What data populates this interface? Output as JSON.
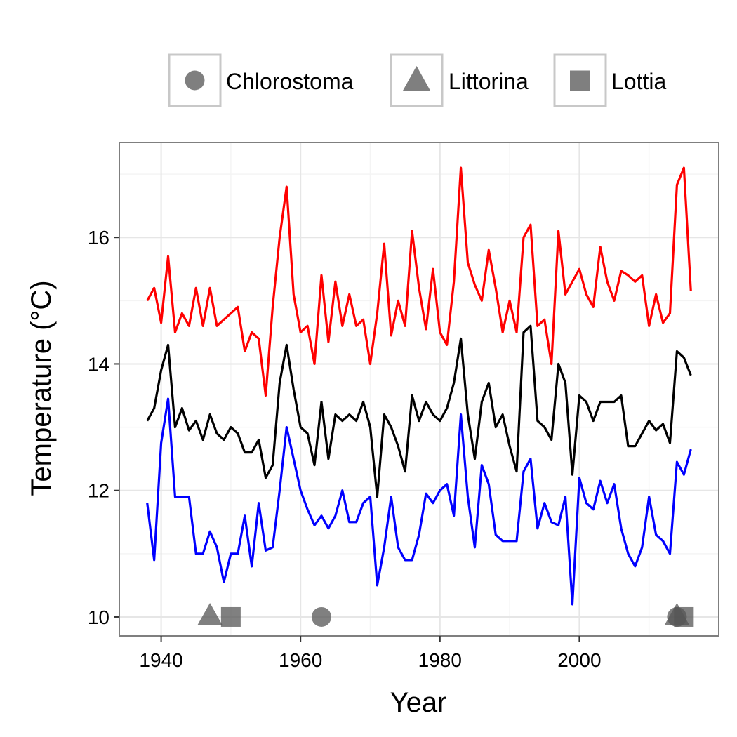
{
  "chart_data": {
    "type": "line",
    "title": "",
    "xlabel": "Year",
    "ylabel": "Temperature (°C)",
    "xlim": [
      1934,
      2020
    ],
    "ylim": [
      9.7,
      17.5
    ],
    "xticks": [
      1940,
      1960,
      1980,
      2000
    ],
    "yticks": [
      10,
      12,
      14,
      16
    ],
    "grid": true,
    "legend": {
      "position": "top",
      "entries": [
        {
          "label": "Chlorostoma",
          "shape": "circle"
        },
        {
          "label": "Littorina",
          "shape": "triangle"
        },
        {
          "label": "Lottia",
          "shape": "square"
        }
      ]
    },
    "colors": {
      "upper": "#ff0000",
      "middle": "#000000",
      "lower": "#0000ff",
      "marker": "#555555"
    },
    "x": [
      1938,
      1939,
      1940,
      1941,
      1942,
      1943,
      1944,
      1945,
      1946,
      1947,
      1948,
      1949,
      1950,
      1951,
      1952,
      1953,
      1954,
      1955,
      1956,
      1957,
      1958,
      1959,
      1960,
      1961,
      1962,
      1963,
      1964,
      1965,
      1966,
      1967,
      1968,
      1969,
      1970,
      1971,
      1972,
      1973,
      1974,
      1975,
      1976,
      1977,
      1978,
      1979,
      1980,
      1981,
      1982,
      1983,
      1984,
      1985,
      1986,
      1987,
      1988,
      1989,
      1990,
      1991,
      1992,
      1993,
      1994,
      1995,
      1996,
      1997,
      1998,
      1999,
      2000,
      2001,
      2002,
      2003,
      2004,
      2005,
      2006,
      2007,
      2008,
      2009,
      2010,
      2011,
      2012,
      2013,
      2014,
      2015,
      2016
    ],
    "series": [
      {
        "color": "#ff0000",
        "values": [
          15.0,
          15.2,
          14.65,
          15.7,
          14.5,
          14.8,
          14.6,
          15.2,
          14.6,
          15.2,
          14.6,
          14.7,
          14.8,
          14.9,
          14.2,
          14.5,
          14.4,
          13.5,
          14.9,
          16.0,
          16.8,
          15.1,
          14.5,
          14.6,
          14.0,
          15.4,
          14.35,
          15.3,
          14.6,
          15.1,
          14.6,
          14.7,
          14.0,
          14.8,
          15.9,
          14.45,
          15.0,
          14.6,
          16.1,
          15.2,
          14.55,
          15.5,
          14.5,
          14.3,
          15.3,
          17.1,
          15.6,
          15.25,
          15.0,
          15.8,
          15.2,
          14.5,
          15.0,
          14.5,
          16.0,
          16.2,
          14.6,
          14.7,
          14.0,
          16.1,
          15.1,
          15.3,
          15.5,
          15.1,
          14.9,
          15.85,
          15.3,
          15.0,
          15.47,
          15.4,
          15.3,
          15.4,
          14.6,
          15.1,
          14.65,
          14.8,
          16.83,
          17.1,
          15.15
        ]
      },
      {
        "color": "#000000",
        "values": [
          13.1,
          13.3,
          13.9,
          14.3,
          13.0,
          13.3,
          12.95,
          13.1,
          12.8,
          13.2,
          12.9,
          12.8,
          13.0,
          12.9,
          12.6,
          12.6,
          12.8,
          12.2,
          12.4,
          13.7,
          14.3,
          13.6,
          13.0,
          12.9,
          12.4,
          13.4,
          12.5,
          13.2,
          13.1,
          13.2,
          13.1,
          13.4,
          13.0,
          11.9,
          13.2,
          13.0,
          12.7,
          12.3,
          13.5,
          13.1,
          13.4,
          13.2,
          13.1,
          13.3,
          13.7,
          14.4,
          13.2,
          12.5,
          13.4,
          13.7,
          13.0,
          13.2,
          12.7,
          12.3,
          14.5,
          14.6,
          13.1,
          13.0,
          12.8,
          14.0,
          13.7,
          12.25,
          13.5,
          13.4,
          13.1,
          13.4,
          13.4,
          13.4,
          13.5,
          12.7,
          12.7,
          12.9,
          13.1,
          12.95,
          13.05,
          12.75,
          14.2,
          14.1,
          13.82
        ]
      },
      {
        "color": "#0000ff",
        "values": [
          11.8,
          10.9,
          12.75,
          13.45,
          11.9,
          11.9,
          11.9,
          11.0,
          11.0,
          11.35,
          11.1,
          10.55,
          11.0,
          11.0,
          11.6,
          10.8,
          11.8,
          11.05,
          11.1,
          12.0,
          13.0,
          12.5,
          12.0,
          11.7,
          11.45,
          11.6,
          11.4,
          11.6,
          12.0,
          11.5,
          11.5,
          11.8,
          11.9,
          10.5,
          11.1,
          11.9,
          11.1,
          10.9,
          10.9,
          11.3,
          11.95,
          11.8,
          12.0,
          12.1,
          11.6,
          13.2,
          11.9,
          11.1,
          12.4,
          12.1,
          11.3,
          11.2,
          11.2,
          11.2,
          12.3,
          12.5,
          11.4,
          11.8,
          11.5,
          11.45,
          11.9,
          10.2,
          12.2,
          11.8,
          11.7,
          12.15,
          11.8,
          12.1,
          11.4,
          11.0,
          10.8,
          11.1,
          11.9,
          11.3,
          11.2,
          11.0,
          12.45,
          12.25,
          12.65
        ]
      }
    ],
    "markers": [
      {
        "species": "Chlorostoma",
        "shape": "circle",
        "x": 1963,
        "y": 10
      },
      {
        "species": "Chlorostoma",
        "shape": "circle",
        "x": 2014,
        "y": 10
      },
      {
        "species": "Littorina",
        "shape": "triangle",
        "x": 1947,
        "y": 10
      },
      {
        "species": "Littorina",
        "shape": "triangle",
        "x": 2014,
        "y": 10
      },
      {
        "species": "Lottia",
        "shape": "square",
        "x": 1950,
        "y": 10
      },
      {
        "species": "Lottia",
        "shape": "square",
        "x": 2015,
        "y": 10
      }
    ]
  }
}
